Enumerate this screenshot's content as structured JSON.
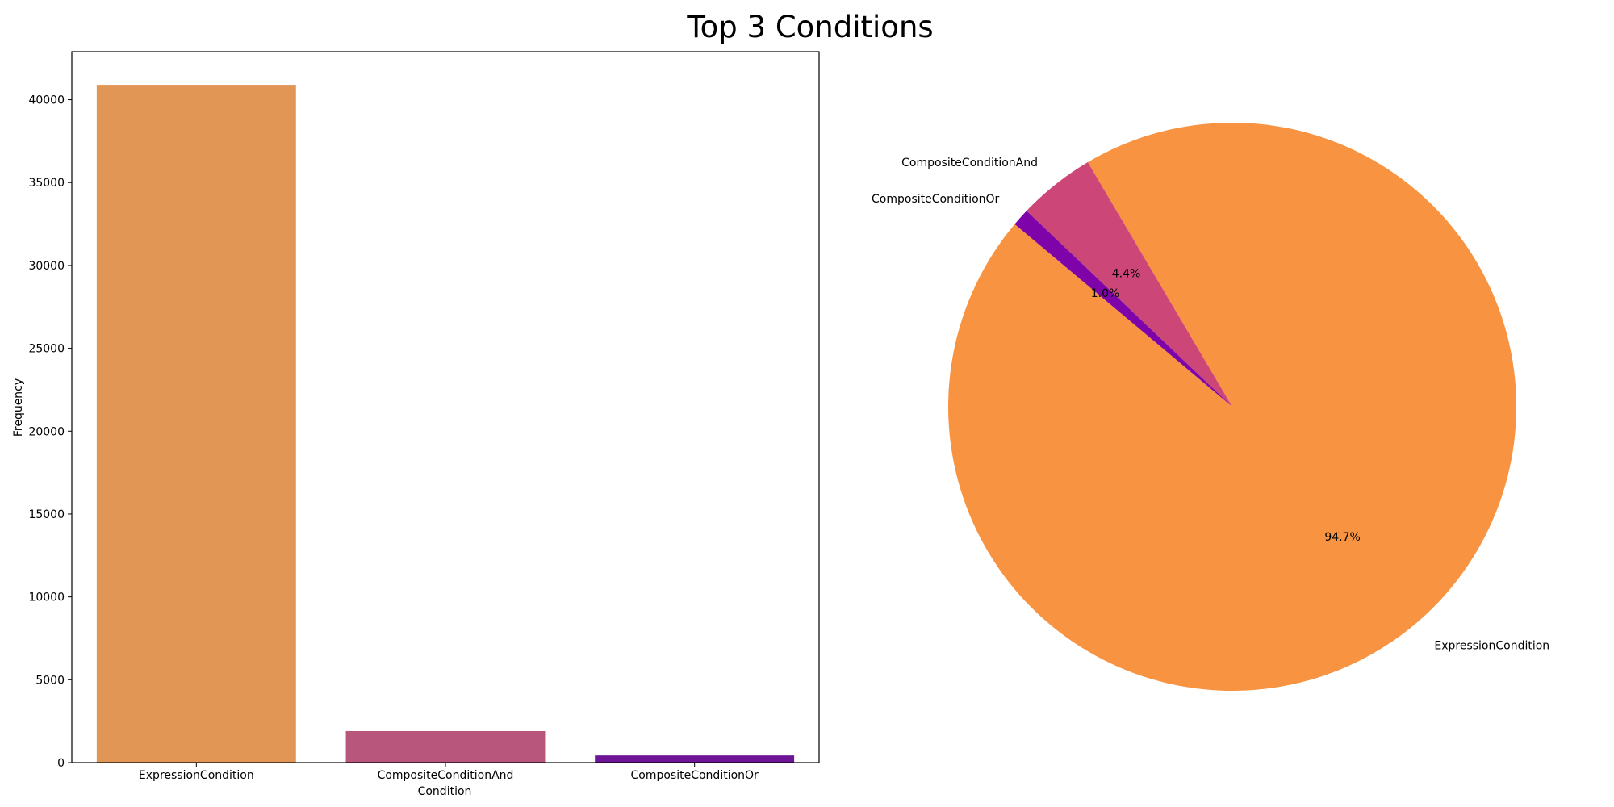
{
  "figure_title": "Top 3 Conditions",
  "chart_data": [
    {
      "type": "bar",
      "title": "",
      "xlabel": "Condition",
      "ylabel": "Frequency",
      "categories": [
        "ExpressionCondition",
        "CompositeConditionAnd",
        "CompositeConditionOr"
      ],
      "values": [
        40900,
        1900,
        430
      ],
      "ylim": [
        0,
        42900
      ],
      "yticks": [
        0,
        5000,
        10000,
        15000,
        20000,
        25000,
        30000,
        35000,
        40000
      ],
      "colors": [
        "#e29656",
        "#b8567c",
        "#6e1597"
      ],
      "grid": false
    },
    {
      "type": "pie",
      "title": "",
      "labels": [
        "ExpressionCondition",
        "CompositeConditionAnd",
        "CompositeConditionOr"
      ],
      "values": [
        94.7,
        4.4,
        1.0
      ],
      "autopct_labels": [
        "94.7%",
        "4.4%",
        "1.0%"
      ],
      "colors": [
        "#f89441",
        "#cc4778",
        "#7e03a8"
      ],
      "start_angle_deg": 140,
      "direction": "counterclockwise"
    }
  ]
}
